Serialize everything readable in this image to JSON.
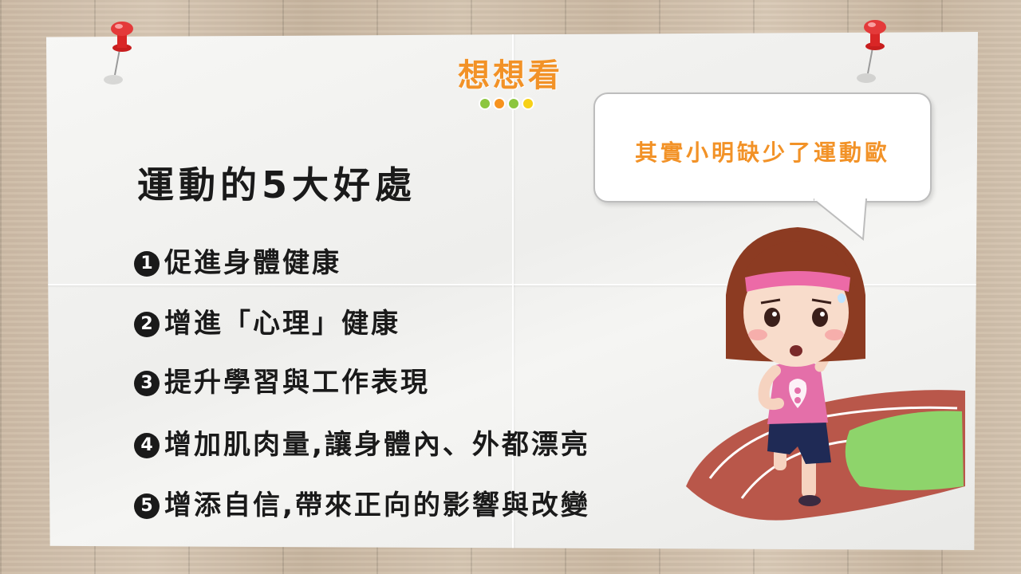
{
  "slide": {
    "title": "想想看",
    "heading": "運動的5大好處",
    "items": [
      {
        "marker": "1",
        "text": "促進身體健康"
      },
      {
        "marker": "2",
        "text": "增進「心理」健康"
      },
      {
        "marker": "3",
        "text": "提升學習與工作表現"
      },
      {
        "marker": "4",
        "text": "增加肌肉量,讓身體內、外都漂亮"
      },
      {
        "marker": "5",
        "text": "增添自信,帶來正向的影響與改變"
      }
    ],
    "speech_bubble": "其實小明缺少了運動歐"
  },
  "decor": {
    "title_color": "#f29227",
    "fruit_dots": [
      "#8cc63f",
      "#f7931e",
      "#8cc63f",
      "#f7d117"
    ],
    "pin_color": "#e02828",
    "track_color": "#b9574a",
    "grass_color": "#8ed46b",
    "icons": [
      "push-pin-icon",
      "fruit-slice-icon",
      "girl-runner-illustration"
    ]
  }
}
